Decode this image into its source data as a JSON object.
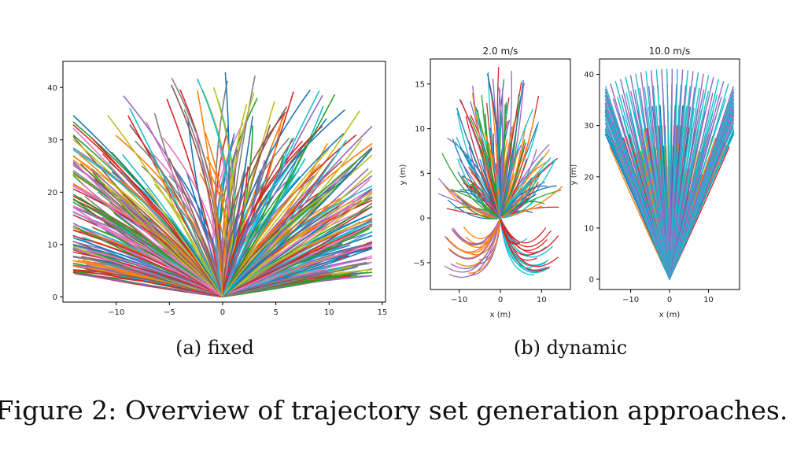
{
  "subcaptions": {
    "a": "(a) fixed",
    "b": "(b) dynamic"
  },
  "figure_caption": "Figure 2: Overview of trajectory set generation approaches.",
  "palette": [
    "#1f77b4",
    "#ff7f0e",
    "#2ca02c",
    "#d62728",
    "#9467bd",
    "#8c564b",
    "#e377c2",
    "#7f7f7f",
    "#bcbd22",
    "#17becf"
  ],
  "chart_data": [
    {
      "type": "line",
      "title": "",
      "xlabel": "",
      "ylabel": "",
      "xlim": [
        -15,
        15.3
      ],
      "ylim": [
        -1,
        45
      ],
      "xticks": [
        -10,
        -5,
        0,
        5,
        10,
        15
      ],
      "yticks": [
        0,
        10,
        20,
        30,
        40
      ],
      "origin": [
        0,
        0
      ],
      "description_of_series": "Several hundred curved trajectories fanning out from the origin, endpoints spread from about x=-14 to x=14 and y=4 to y=43.",
      "approx_endpoint_extent": {
        "x": [
          -14,
          14
        ],
        "y": [
          4,
          43
        ]
      }
    },
    {
      "type": "line",
      "title": "2.0 m/s",
      "xlabel": "x (m)",
      "ylabel": "y (m)",
      "xlim": [
        -17,
        17
      ],
      "ylim": [
        -8,
        17.8
      ],
      "xticks": [
        -10,
        0,
        10
      ],
      "yticks": [
        -5,
        0,
        5,
        10,
        15
      ],
      "origin": [
        0,
        0
      ],
      "approx_endpoint_extent": {
        "x": [
          -15,
          15
        ],
        "y": [
          -7,
          17
        ]
      }
    },
    {
      "type": "line",
      "title": "10.0 m/s",
      "xlabel": "x (m)",
      "ylabel": "y (m)",
      "xlim": [
        -18,
        18
      ],
      "ylim": [
        -2,
        43
      ],
      "xticks": [
        -10,
        0,
        10
      ],
      "yticks": [
        0,
        10,
        20,
        30,
        40
      ],
      "origin": [
        0,
        0
      ],
      "approx_endpoint_extent": {
        "x": [
          -16,
          16
        ],
        "y": [
          18,
          41
        ]
      }
    }
  ]
}
